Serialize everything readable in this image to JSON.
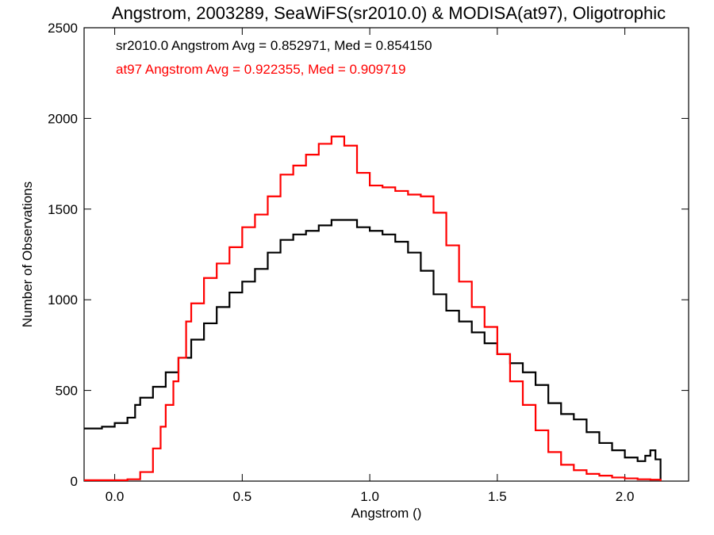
{
  "chart_data": {
    "type": "line",
    "title": "Angstrom, 2003289, SeaWiFS(sr2010.0) & MODISA(at97), Oligotrophic",
    "xlabel": "Angstrom ()",
    "ylabel": "Number of Observations",
    "xlim": [
      -0.12,
      2.25
    ],
    "ylim": [
      0,
      2500
    ],
    "xticks": [
      0.0,
      0.5,
      1.0,
      1.5,
      2.0
    ],
    "xtick_labels": [
      "0.0",
      "0.5",
      "1.0",
      "1.5",
      "2.0"
    ],
    "yticks": [
      0,
      500,
      1000,
      1500,
      2000,
      2500
    ],
    "ytick_labels": [
      "0",
      "500",
      "1000",
      "1500",
      "2000",
      "2500"
    ],
    "grid": false,
    "legend_position": "top-left",
    "series": [
      {
        "name": "sr2010.0",
        "color": "#000000",
        "step": "histogram",
        "x": [
          -0.12,
          -0.05,
          0.0,
          0.05,
          0.08,
          0.1,
          0.15,
          0.2,
          0.25,
          0.3,
          0.35,
          0.4,
          0.45,
          0.5,
          0.55,
          0.6,
          0.65,
          0.7,
          0.75,
          0.8,
          0.85,
          0.9,
          0.95,
          1.0,
          1.05,
          1.1,
          1.15,
          1.2,
          1.25,
          1.3,
          1.35,
          1.4,
          1.45,
          1.5,
          1.55,
          1.6,
          1.65,
          1.7,
          1.75,
          1.8,
          1.85,
          1.9,
          1.95,
          2.0,
          2.05,
          2.08,
          2.1,
          2.12,
          2.14
        ],
        "y": [
          290,
          300,
          320,
          350,
          420,
          460,
          520,
          600,
          680,
          780,
          870,
          960,
          1040,
          1100,
          1170,
          1260,
          1330,
          1360,
          1380,
          1410,
          1440,
          1440,
          1400,
          1380,
          1360,
          1320,
          1260,
          1160,
          1030,
          940,
          880,
          820,
          760,
          700,
          650,
          600,
          530,
          430,
          370,
          340,
          270,
          210,
          170,
          130,
          110,
          140,
          170,
          120,
          70
        ]
      },
      {
        "name": "at97",
        "color": "#ff0000",
        "step": "histogram",
        "x": [
          -0.12,
          0.0,
          0.05,
          0.1,
          0.15,
          0.18,
          0.2,
          0.23,
          0.25,
          0.28,
          0.3,
          0.35,
          0.4,
          0.45,
          0.5,
          0.55,
          0.6,
          0.65,
          0.7,
          0.75,
          0.8,
          0.85,
          0.9,
          0.95,
          1.0,
          1.05,
          1.1,
          1.15,
          1.2,
          1.25,
          1.3,
          1.35,
          1.4,
          1.45,
          1.5,
          1.55,
          1.6,
          1.65,
          1.7,
          1.75,
          1.8,
          1.85,
          1.9,
          1.95,
          2.0,
          2.05,
          2.1,
          2.14
        ],
        "y": [
          5,
          5,
          10,
          50,
          180,
          300,
          420,
          550,
          680,
          880,
          980,
          1120,
          1200,
          1290,
          1400,
          1470,
          1570,
          1690,
          1740,
          1800,
          1860,
          1900,
          1850,
          1700,
          1630,
          1620,
          1600,
          1580,
          1570,
          1480,
          1300,
          1100,
          960,
          850,
          700,
          550,
          420,
          280,
          160,
          90,
          60,
          40,
          30,
          20,
          15,
          10,
          8,
          5
        ]
      }
    ],
    "annotations": [
      {
        "text": "sr2010.0 Angstrom Avg = 0.852971, Med = 0.854150",
        "color": "#000000"
      },
      {
        "text": "at97 Angstrom Avg = 0.922355, Med = 0.909719",
        "color": "#ff0000"
      }
    ]
  }
}
